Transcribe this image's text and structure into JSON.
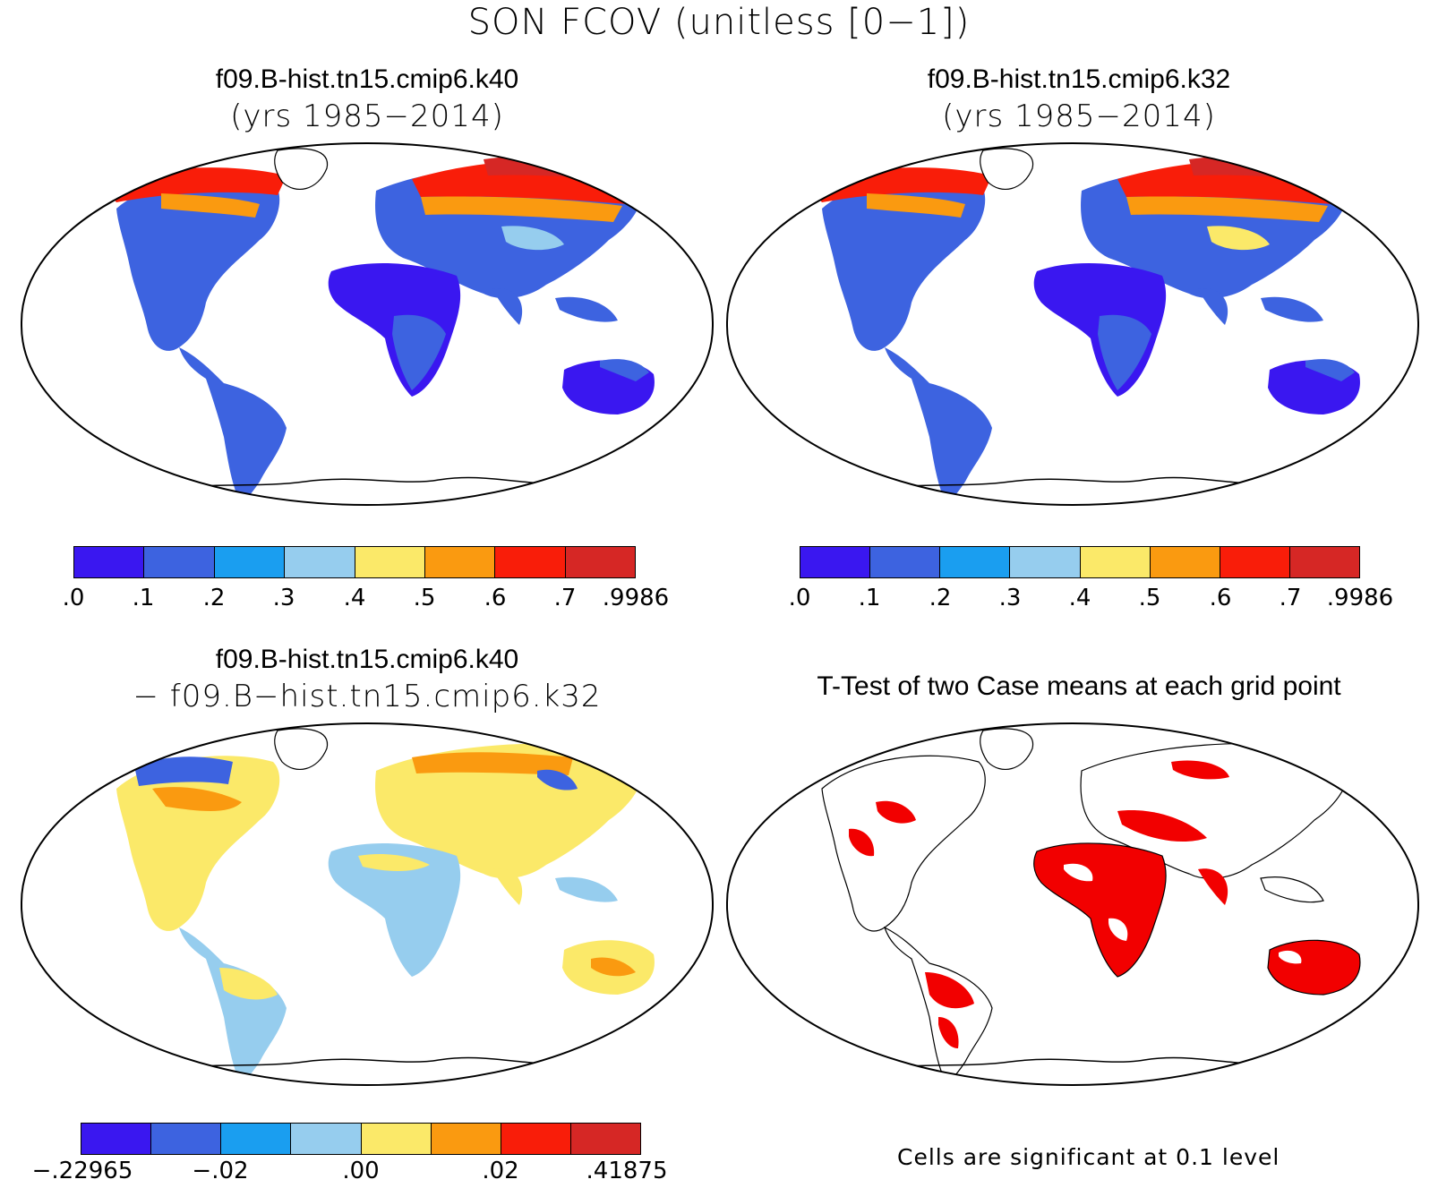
{
  "figure": {
    "main_title": "SON FCOV (unitless [0−1])"
  },
  "panels": {
    "top_left": {
      "title": "f09.B-hist.tn15.cmip6.k40",
      "subtitle": "(yrs 1985−2014)"
    },
    "top_right": {
      "title": "f09.B-hist.tn15.cmip6.k32",
      "subtitle": "(yrs 1985−2014)"
    },
    "bottom_left": {
      "title": "f09.B-hist.tn15.cmip6.k40",
      "subtitle": "− f09.B−hist.tn15.cmip6.k32"
    },
    "bottom_right": {
      "title": "T-Test of two Case means at each grid point",
      "note": "Cells are significant at 0.1 level"
    }
  },
  "colorbars": {
    "colors": [
      "#3a17f0",
      "#3d63e0",
      "#1a9ef0",
      "#96cdee",
      "#fbe969",
      "#fa9a10",
      "#f91d09",
      "#d62725"
    ],
    "absolute_labels": [
      ".0",
      ".1",
      ".2",
      ".3",
      ".4",
      ".5",
      ".6",
      ".7",
      ".9986"
    ],
    "difference_labels": [
      "−.22965",
      "−.02",
      ".00",
      ".02",
      ".41875"
    ],
    "significance_color": "#f20000"
  }
}
